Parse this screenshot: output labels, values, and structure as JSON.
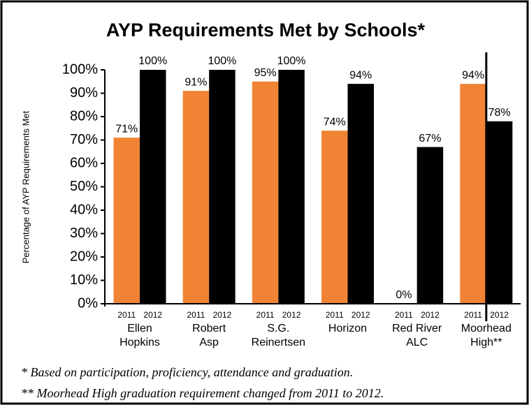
{
  "chart_data": {
    "type": "bar",
    "title": "AYP Requirements Met by Schools*",
    "y_label": "Percentage of AYP Requirements Met",
    "categories": [
      [
        "Ellen",
        "Hopkins"
      ],
      [
        "Robert",
        "Asp"
      ],
      [
        "S.G.",
        "Reinertsen"
      ],
      [
        "Horizon"
      ],
      [
        "Red River",
        "ALC"
      ],
      [
        "Moorhead",
        "High**"
      ]
    ],
    "series": [
      {
        "name": "2011",
        "color": "#f08434",
        "values": [
          71,
          91,
          95,
          74,
          0,
          94
        ],
        "value_labels": [
          "71%",
          "91%",
          "95%",
          "74%",
          "0%",
          "94%"
        ]
      },
      {
        "name": "2012",
        "color": "#000000",
        "values": [
          100,
          100,
          100,
          94,
          67,
          78
        ],
        "value_labels": [
          "100%",
          "100%",
          "100%",
          "94%",
          "67%",
          "78%"
        ]
      }
    ],
    "ylim": [
      0,
      100
    ],
    "yticks": [
      {
        "value": 0,
        "label": "0%"
      },
      {
        "value": 10,
        "label": "10%"
      },
      {
        "value": 20,
        "label": "20%"
      },
      {
        "value": 30,
        "label": "30%"
      },
      {
        "value": 40,
        "label": "40%"
      },
      {
        "value": 50,
        "label": "50%"
      },
      {
        "value": 60,
        "label": "60%"
      },
      {
        "value": 70,
        "label": "70%"
      },
      {
        "value": 80,
        "label": "80%"
      },
      {
        "value": 90,
        "label": "90%"
      },
      {
        "value": 100,
        "label": "100%"
      }
    ],
    "footnotes": [
      "* Based on participation, proficiency, attendance and graduation.",
      "** Moorhead High graduation requirement changed from 2011 to 2012."
    ]
  }
}
